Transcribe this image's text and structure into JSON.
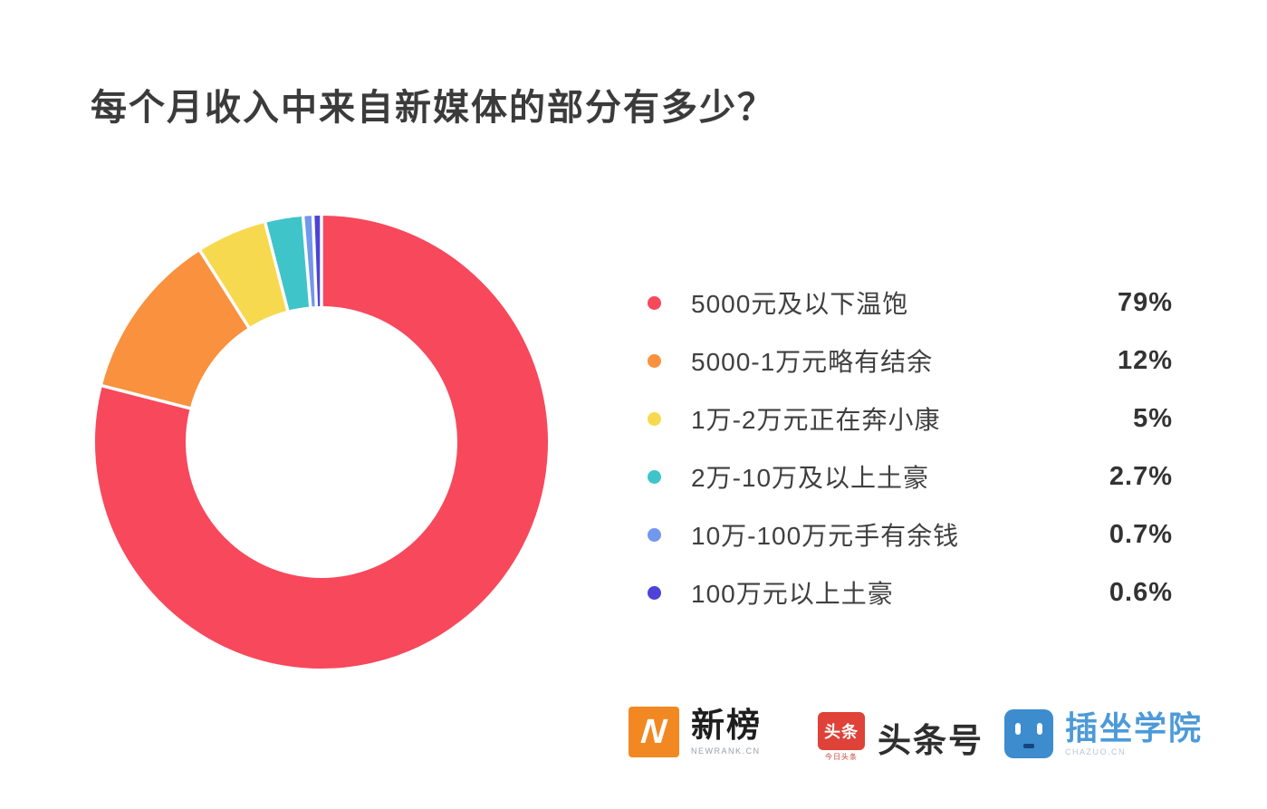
{
  "title": "每个月收入中来自新媒体的部分有多少？",
  "chart_data": {
    "type": "pie",
    "variant": "donut",
    "title": "每个月收入中来自新媒体的部分有多少？",
    "legend_position": "right",
    "start_angle_deg": 0,
    "direction": "clockwise",
    "inner_radius_ratio": 0.6,
    "separator_color": "#ffffff",
    "items": [
      {
        "label": "5000元及以下温饱",
        "value": 79,
        "display": "79%",
        "color": "#f7485c"
      },
      {
        "label": "5000-1万元略有结余",
        "value": 12,
        "display": "12%",
        "color": "#f9913e"
      },
      {
        "label": "1万-2万元正在奔小康",
        "value": 5,
        "display": "5%",
        "color": "#f6d94e"
      },
      {
        "label": "2万-10万及以上土豪",
        "value": 2.7,
        "display": "2.7%",
        "color": "#3fc4c9"
      },
      {
        "label": "10万-100万元手有余钱",
        "value": 0.7,
        "display": "0.7%",
        "color": "#7297ec"
      },
      {
        "label": "100万元以上土豪",
        "value": 0.6,
        "display": "0.6%",
        "color": "#4e42d8"
      }
    ]
  },
  "footer": {
    "newrank": {
      "badge_letter": "N",
      "badge_color": "#f28822",
      "name": "新榜",
      "subtext": "NEWRANK.CN"
    },
    "toutiao": {
      "badge_text": "头条",
      "badge_color": "#de4238",
      "badge_subtext": "今日头条",
      "name": "头条号"
    },
    "chazuo": {
      "badge_color": "#3c8cce",
      "name": "插坐学院",
      "subtext": "CHAZUO.CN",
      "name_color": "#4d9ad8"
    }
  }
}
